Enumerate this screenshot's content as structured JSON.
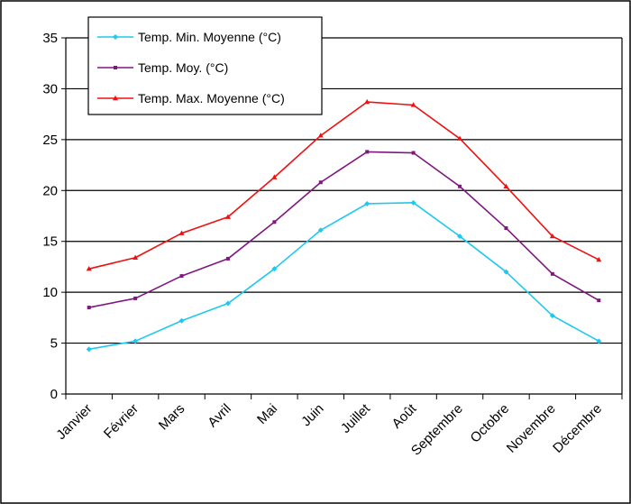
{
  "chart_data": {
    "type": "line",
    "categories": [
      "Janvier",
      "Février",
      "Mars",
      "Avril",
      "Mai",
      "Juin",
      "Juillet",
      "Août",
      "Septembre",
      "Octobre",
      "Novembre",
      "Décembre"
    ],
    "series": [
      {
        "name": "Temp. Min. Moyenne (°C)",
        "color": "#1ec8f0",
        "values": [
          4.4,
          5.2,
          7.2,
          8.9,
          12.3,
          16.1,
          18.7,
          18.8,
          15.5,
          12.0,
          7.7,
          5.2
        ]
      },
      {
        "name": "Temp. Moy. (°C)",
        "color": "#80177f",
        "values": [
          8.5,
          9.4,
          11.6,
          13.3,
          16.9,
          20.8,
          23.8,
          23.7,
          20.4,
          16.3,
          11.8,
          9.2
        ]
      },
      {
        "name": "Temp. Max. Moyenne (°C)",
        "color": "#ee1111",
        "values": [
          12.3,
          13.4,
          15.8,
          17.4,
          21.3,
          25.4,
          28.7,
          28.4,
          25.1,
          20.4,
          15.5,
          13.2
        ]
      }
    ],
    "yticks": [
      0,
      5,
      10,
      15,
      20,
      25,
      30,
      35
    ],
    "ylim": [
      0,
      35
    ],
    "grid": "horizontal",
    "legend_position": "top-left",
    "title": "",
    "xlabel": "",
    "ylabel": ""
  }
}
